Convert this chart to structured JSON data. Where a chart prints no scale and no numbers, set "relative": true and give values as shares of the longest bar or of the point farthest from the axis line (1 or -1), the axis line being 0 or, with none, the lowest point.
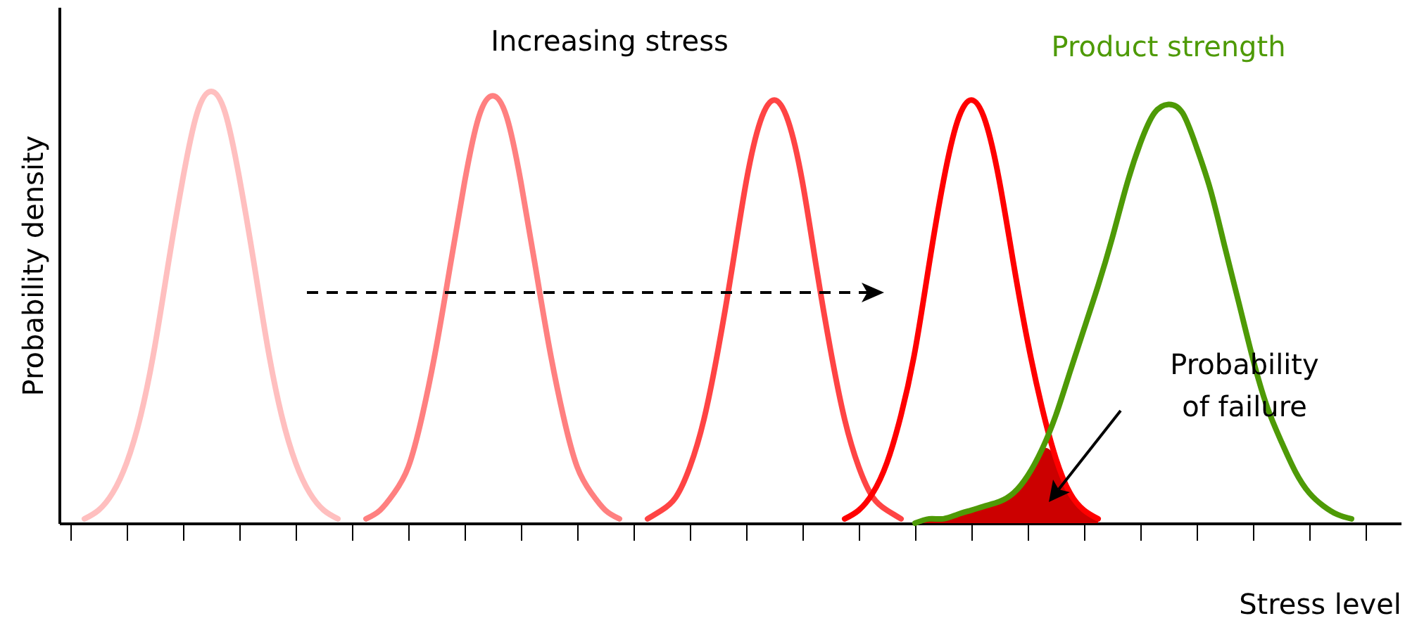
{
  "chart_data": {
    "type": "line",
    "relative": true,
    "xlabel": "Stress level",
    "ylabel": "Probability density",
    "annotations": [
      "Increasing stress",
      "Probability of failure"
    ],
    "categories": [
      null,
      null,
      null,
      null,
      null,
      null,
      null,
      null,
      null,
      null,
      null,
      null,
      null,
      null,
      null,
      null,
      null,
      null,
      null,
      null,
      null,
      null,
      null,
      null,
      null,
      null,
      null,
      null,
      null,
      null,
      null,
      null,
      null,
      null,
      null,
      null,
      null,
      null,
      null,
      null,
      null,
      null,
      null,
      null,
      null,
      null,
      null,
      null,
      null,
      null,
      null,
      null,
      null,
      null,
      null,
      null,
      null,
      null,
      null,
      null,
      null,
      null,
      null,
      null,
      null,
      null,
      null,
      null,
      null,
      null,
      null,
      null,
      null,
      null,
      null,
      null,
      null,
      null,
      null,
      null,
      null,
      null,
      null,
      null,
      null,
      null,
      null,
      null,
      null,
      null,
      null,
      null,
      null
    ],
    "series": [
      {
        "type": "area",
        "color": "#cc0000",
        "values": [
          null,
          null,
          null,
          null,
          null,
          null,
          null,
          null,
          null,
          null,
          null,
          null,
          null,
          null,
          null,
          null,
          null,
          null,
          null,
          null,
          null,
          null,
          null,
          null,
          null,
          null,
          null,
          null,
          null,
          null,
          null,
          null,
          null,
          null,
          null,
          null,
          null,
          null,
          null,
          null,
          null,
          null,
          null,
          null,
          null,
          null,
          null,
          null,
          null,
          null,
          null,
          null,
          null,
          null,
          null,
          null,
          null,
          null,
          null,
          null,
          0,
          0.01,
          0.01,
          0.02,
          0.03,
          0.04,
          0.05,
          0.07,
          0.11,
          0.17,
          0.15,
          0.07,
          0.03,
          0.01,
          null,
          null,
          null,
          null,
          null,
          null,
          null,
          null,
          null,
          null,
          null,
          null,
          null,
          null,
          null,
          null,
          null,
          null,
          null
        ]
      },
      {
        "color": "#ffbfbf",
        "values": [
          null,
          0.01,
          0.03,
          0.07,
          0.14,
          0.25,
          0.41,
          0.61,
          0.8,
          0.95,
          1,
          0.95,
          0.8,
          0.61,
          0.41,
          0.25,
          0.14,
          0.07,
          0.03,
          0.01,
          null,
          null,
          null,
          null,
          null,
          null,
          null,
          null,
          null,
          null,
          null,
          null,
          null,
          null,
          null,
          null,
          null,
          null,
          null,
          null,
          null,
          null,
          null,
          null,
          null,
          null,
          null,
          null,
          null,
          null,
          null,
          null,
          null,
          null,
          null,
          null,
          null,
          null,
          null,
          null,
          null,
          null,
          null,
          null,
          null,
          null,
          null,
          null,
          null,
          null,
          null,
          null,
          null,
          null,
          null,
          null,
          null,
          null,
          null,
          null,
          null,
          null,
          null,
          null,
          null,
          null,
          null,
          null,
          null,
          null,
          null,
          null,
          null
        ]
      },
      {
        "color": "#ff8080",
        "values": [
          null,
          null,
          null,
          null,
          null,
          null,
          null,
          null,
          null,
          null,
          null,
          null,
          null,
          null,
          null,
          null,
          null,
          null,
          null,
          null,
          null,
          0.01,
          0.03,
          0.07,
          0.13,
          0.25,
          0.41,
          0.6,
          0.79,
          0.94,
          0.99,
          0.94,
          0.79,
          0.6,
          0.41,
          0.25,
          0.13,
          0.07,
          0.03,
          0.01,
          null,
          null,
          null,
          null,
          null,
          null,
          null,
          null,
          null,
          null,
          null,
          null,
          null,
          null,
          null,
          null,
          null,
          null,
          null,
          null,
          null,
          null,
          null,
          null,
          null,
          null,
          null,
          null,
          null,
          null,
          null,
          null,
          null,
          null,
          null,
          null,
          null,
          null,
          null,
          null,
          null,
          null,
          null,
          null,
          null,
          null,
          null,
          null,
          null,
          null,
          null,
          null,
          null
        ]
      },
      {
        "color": "#ff4444",
        "values": [
          null,
          null,
          null,
          null,
          null,
          null,
          null,
          null,
          null,
          null,
          null,
          null,
          null,
          null,
          null,
          null,
          null,
          null,
          null,
          null,
          null,
          null,
          null,
          null,
          null,
          null,
          null,
          null,
          null,
          null,
          null,
          null,
          null,
          null,
          null,
          null,
          null,
          null,
          null,
          null,
          null,
          0.01,
          0.03,
          0.06,
          0.13,
          0.24,
          0.4,
          0.59,
          0.79,
          0.93,
          0.98,
          0.93,
          0.79,
          0.59,
          0.4,
          0.24,
          0.13,
          0.06,
          0.03,
          0.01,
          null,
          null,
          null,
          null,
          null,
          null,
          null,
          null,
          null,
          null,
          null,
          null,
          null,
          null,
          null,
          null,
          null,
          null,
          null,
          null,
          null,
          null,
          null,
          null,
          null,
          null,
          null,
          null,
          null,
          null,
          null,
          null,
          null
        ]
      },
      {
        "color": "#ff0000",
        "values": [
          null,
          null,
          null,
          null,
          null,
          null,
          null,
          null,
          null,
          null,
          null,
          null,
          null,
          null,
          null,
          null,
          null,
          null,
          null,
          null,
          null,
          null,
          null,
          null,
          null,
          null,
          null,
          null,
          null,
          null,
          null,
          null,
          null,
          null,
          null,
          null,
          null,
          null,
          null,
          null,
          null,
          null,
          null,
          null,
          null,
          null,
          null,
          null,
          null,
          null,
          null,
          null,
          null,
          null,
          null,
          0.01,
          0.03,
          0.07,
          0.14,
          0.25,
          0.4,
          0.6,
          0.79,
          0.93,
          0.98,
          0.93,
          0.79,
          0.6,
          0.42,
          0.27,
          0.15,
          0.07,
          0.03,
          0.01,
          null,
          null,
          null,
          null,
          null,
          null,
          null,
          null,
          null,
          null,
          null,
          null,
          null,
          null,
          null,
          null,
          null,
          null,
          null
        ]
      },
      {
        "name": "Product strength",
        "color": "#4e9a06",
        "values": [
          null,
          null,
          null,
          null,
          null,
          null,
          null,
          null,
          null,
          null,
          null,
          null,
          null,
          null,
          null,
          null,
          null,
          null,
          null,
          null,
          null,
          null,
          null,
          null,
          null,
          null,
          null,
          null,
          null,
          null,
          null,
          null,
          null,
          null,
          null,
          null,
          null,
          null,
          null,
          null,
          null,
          null,
          null,
          null,
          null,
          null,
          null,
          null,
          null,
          null,
          null,
          null,
          null,
          null,
          null,
          null,
          null,
          null,
          null,
          null,
          0,
          0.01,
          0.01,
          0.02,
          0.03,
          0.04,
          0.05,
          0.07,
          0.11,
          0.17,
          0.25,
          0.35,
          0.45,
          0.55,
          0.66,
          0.78,
          0.88,
          0.95,
          0.97,
          0.95,
          0.87,
          0.77,
          0.64,
          0.51,
          0.38,
          0.27,
          0.19,
          0.12,
          0.07,
          0.04,
          0.02,
          0.01,
          null
        ]
      }
    ]
  }
}
